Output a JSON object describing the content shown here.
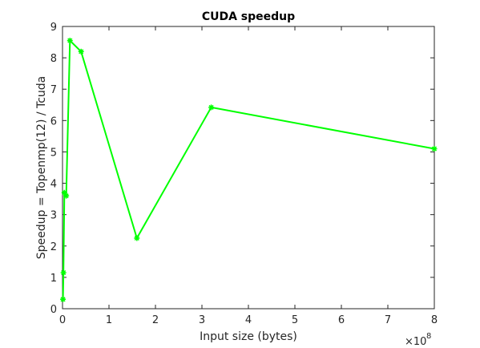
{
  "chart_data": {
    "type": "line",
    "title": "CUDA speedup",
    "xlabel": "Input size (bytes)",
    "ylabel": "Speedup = Topenmp(12) / Tcuda",
    "x_exponent_base": "×10",
    "x_exponent_power": "8",
    "xlim": [
      0,
      8
    ],
    "ylim": [
      0,
      9
    ],
    "x_ticks": [
      0,
      1,
      2,
      3,
      4,
      5,
      6,
      7,
      8
    ],
    "y_ticks": [
      0,
      1,
      2,
      3,
      4,
      5,
      6,
      7,
      8,
      9
    ],
    "x_tick_labels": [
      "0",
      "1",
      "2",
      "3",
      "4",
      "5",
      "6",
      "7",
      "8"
    ],
    "y_tick_labels": [
      "0",
      "1",
      "2",
      "3",
      "4",
      "5",
      "6",
      "7",
      "8",
      "9"
    ],
    "grid": false,
    "series": [
      {
        "color": "#00ff00",
        "marker": "asterisk",
        "x": [
          0.01,
          0.02,
          0.04,
          0.08,
          0.16,
          0.4,
          1.6,
          3.2,
          8.0
        ],
        "y": [
          0.3,
          1.15,
          3.7,
          3.6,
          8.55,
          8.2,
          2.25,
          6.42,
          5.1
        ]
      }
    ]
  }
}
